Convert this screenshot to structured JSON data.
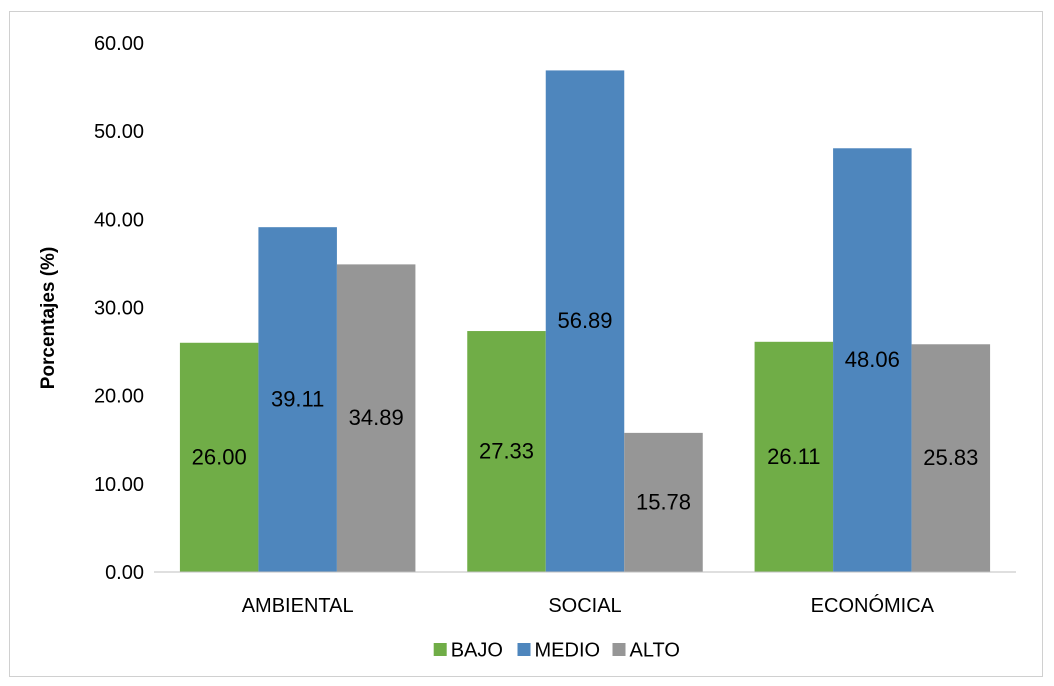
{
  "chart_data": {
    "type": "bar",
    "title": "",
    "xlabel": "",
    "ylabel": "Porcentajes (%)",
    "ylim": [
      0,
      60
    ],
    "yticks": [
      0,
      10,
      20,
      30,
      40,
      50,
      60
    ],
    "ytick_labels": [
      "0.00",
      "10.00",
      "20.00",
      "30.00",
      "40.00",
      "50.00",
      "60.00"
    ],
    "grid": false,
    "legend_position": "bottom",
    "categories": [
      "AMBIENTAL",
      "SOCIAL",
      "ECONÓMICA"
    ],
    "series": [
      {
        "name": "BAJO",
        "color": "#70ad47",
        "values": [
          26.0,
          27.33,
          26.11
        ],
        "labels": [
          "26.00",
          "27.33",
          "26.11"
        ]
      },
      {
        "name": "MEDIO",
        "color": "#4e86bd",
        "values": [
          39.11,
          56.89,
          48.06
        ],
        "labels": [
          "39.11",
          "56.89",
          "48.06"
        ]
      },
      {
        "name": "ALTO",
        "color": "#969696",
        "values": [
          34.89,
          15.78,
          25.83
        ],
        "labels": [
          "34.89",
          "15.78",
          "25.83"
        ]
      }
    ]
  }
}
